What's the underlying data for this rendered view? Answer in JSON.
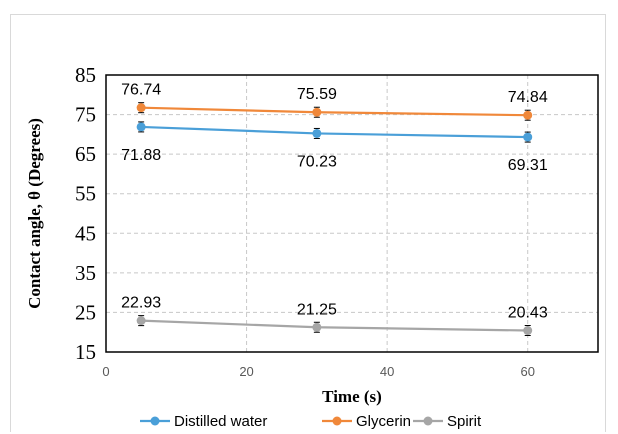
{
  "chart_data": {
    "type": "line",
    "xlabel": "Time (s)",
    "ylabel": "Contact angle, θ (Degrees)",
    "xlim": [
      0,
      70
    ],
    "ylim": [
      15,
      85
    ],
    "x_ticks": [
      "0",
      "20",
      "40",
      "60"
    ],
    "y_ticks": [
      "85",
      "75",
      "65",
      "55",
      "45",
      "35",
      "25",
      "15"
    ],
    "grid": true,
    "legend_position": "bottom",
    "series": [
      {
        "name": "Distilled water",
        "color": "#4a9fd8",
        "x": [
          5,
          30,
          60
        ],
        "y": [
          71.88,
          70.23,
          69.31
        ],
        "labels": [
          "71.88",
          "70.23",
          "69.31"
        ],
        "label_position": "below"
      },
      {
        "name": "Glycerin",
        "color": "#f0883a",
        "x": [
          5,
          30,
          60
        ],
        "y": [
          76.74,
          75.59,
          74.84
        ],
        "labels": [
          "76.74",
          "75.59",
          "74.84"
        ],
        "label_position": "above"
      },
      {
        "name": "Spirit",
        "color": "#a6a6a6",
        "x": [
          5,
          30,
          60
        ],
        "y": [
          22.93,
          21.25,
          20.43
        ],
        "labels": [
          "22.93",
          "21.25",
          "20.43"
        ],
        "label_position": "above"
      }
    ]
  }
}
